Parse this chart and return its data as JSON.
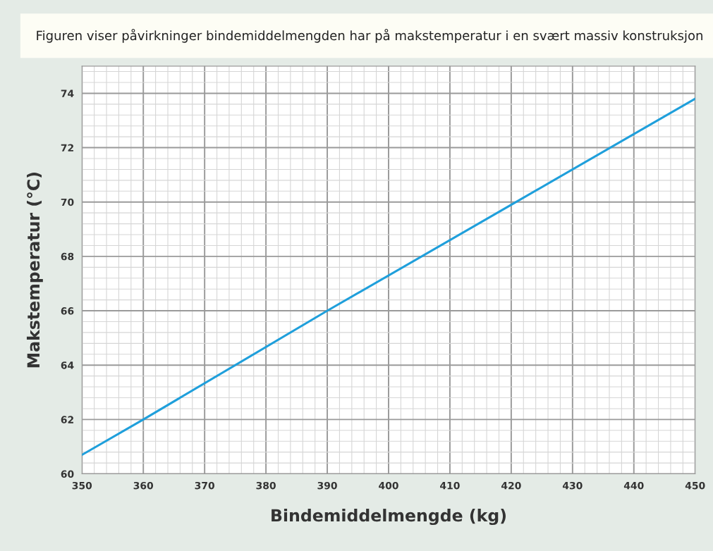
{
  "chart_data": {
    "type": "line",
    "title": "Figuren viser påvirkninger bindemiddelmengden har på makstemperatur i en svært massiv konstruksjon",
    "xlabel": "Bindemiddelmengde (kg)",
    "ylabel": "Makstemperatur (°C)",
    "x": [
      350,
      360,
      390,
      420,
      450
    ],
    "series": [
      {
        "color": "#1f9fdb",
        "values": [
          60.7,
          62.0,
          66.0,
          69.9,
          73.8
        ]
      }
    ],
    "xlim": [
      350,
      450
    ],
    "xticks": [
      350,
      360,
      370,
      380,
      390,
      400,
      410,
      420,
      430,
      440,
      450
    ],
    "ylim": [
      60,
      75
    ],
    "yticks": [
      60,
      62,
      64,
      66,
      68,
      70,
      72,
      74
    ],
    "grid": true,
    "marker": "none",
    "line_style": "solid",
    "legend": false
  }
}
